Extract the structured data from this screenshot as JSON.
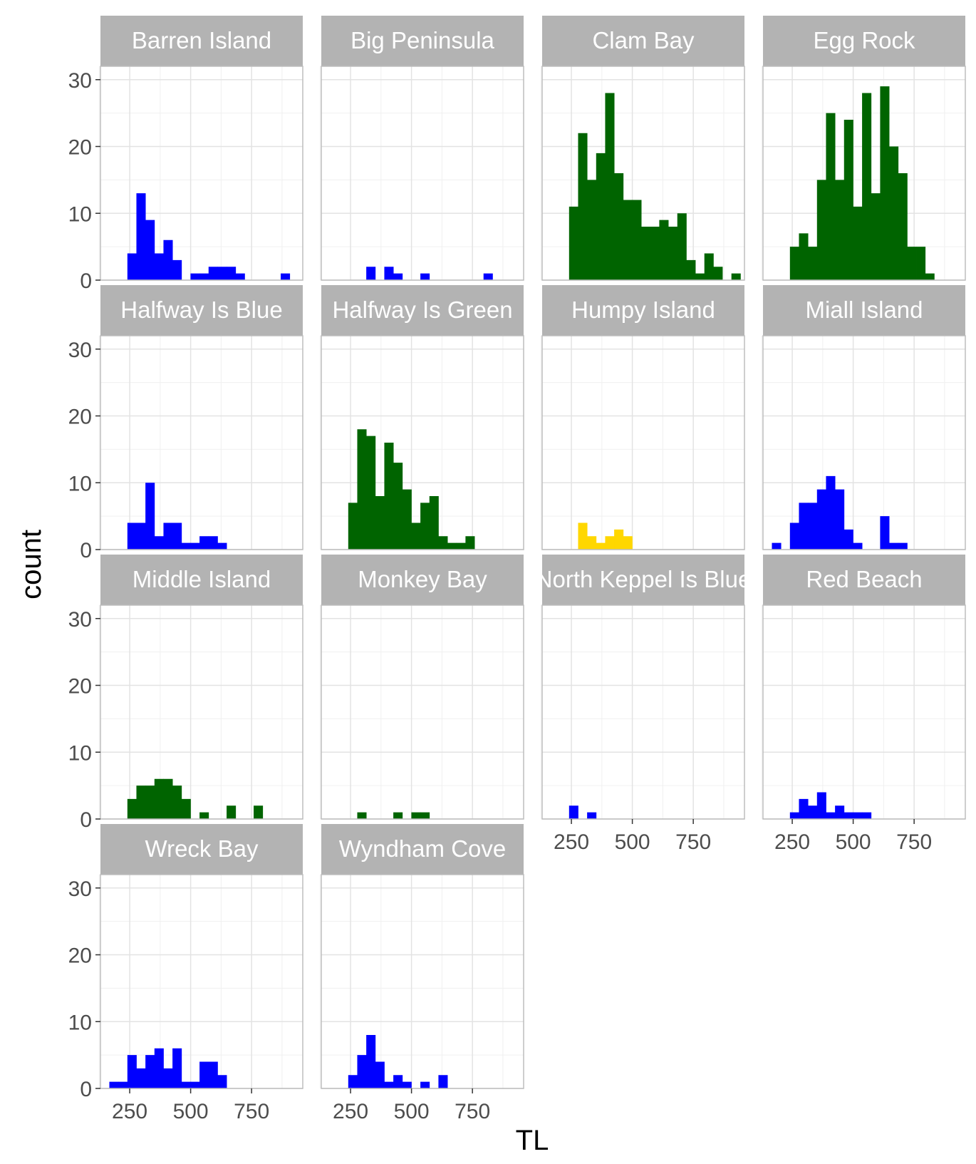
{
  "chart_data": {
    "type": "bar",
    "subtype": "faceted histogram",
    "xlabel": "TL",
    "ylabel": "count",
    "xlim": [
      130,
      960
    ],
    "ylim": [
      0,
      32
    ],
    "x_ticks": [
      250,
      500,
      750
    ],
    "y_ticks": [
      0,
      10,
      20,
      30
    ],
    "bin_width": 37,
    "grid": true,
    "legend": "none",
    "colors": {
      "blue": "#0000ff",
      "green": "#006400",
      "yellow": "#ffd700",
      "strip": "#b3b3b3",
      "grid": "#e3e3e3",
      "border": "#bdbdbd"
    },
    "facets": [
      {
        "name": "Barren Island",
        "label": "Barren Island",
        "color": "blue",
        "bins": [
          [
            259,
            4
          ],
          [
            296,
            13
          ],
          [
            333,
            9
          ],
          [
            370,
            4
          ],
          [
            407,
            6
          ],
          [
            444,
            3
          ],
          [
            518,
            1
          ],
          [
            555,
            1
          ],
          [
            592,
            2
          ],
          [
            629,
            2
          ],
          [
            666,
            2
          ],
          [
            703,
            1
          ],
          [
            888,
            1
          ]
        ]
      },
      {
        "name": "Big Peninsula",
        "label": "Big Peninsula",
        "color": "blue",
        "bins": [
          [
            333,
            2
          ],
          [
            407,
            2
          ],
          [
            444,
            1
          ],
          [
            555,
            1
          ],
          [
            814,
            1
          ]
        ]
      },
      {
        "name": "Clam Bay",
        "label": "Clam Bay",
        "color": "green",
        "bins": [
          [
            259,
            11
          ],
          [
            296,
            22
          ],
          [
            333,
            15
          ],
          [
            370,
            19
          ],
          [
            407,
            28
          ],
          [
            444,
            16
          ],
          [
            481,
            12
          ],
          [
            518,
            12
          ],
          [
            555,
            8
          ],
          [
            592,
            8
          ],
          [
            629,
            9
          ],
          [
            666,
            8
          ],
          [
            703,
            10
          ],
          [
            740,
            3
          ],
          [
            777,
            1
          ],
          [
            814,
            4
          ],
          [
            851,
            2
          ],
          [
            925,
            1
          ]
        ]
      },
      {
        "name": "Egg Rock",
        "label": "Egg Rock",
        "color": "green",
        "bins": [
          [
            259,
            5
          ],
          [
            296,
            7
          ],
          [
            333,
            5
          ],
          [
            370,
            15
          ],
          [
            407,
            25
          ],
          [
            444,
            15
          ],
          [
            481,
            24
          ],
          [
            518,
            11
          ],
          [
            555,
            28
          ],
          [
            592,
            13
          ],
          [
            629,
            29
          ],
          [
            666,
            20
          ],
          [
            703,
            16
          ],
          [
            740,
            5
          ],
          [
            777,
            5
          ],
          [
            814,
            1
          ]
        ]
      },
      {
        "name": "Halfway Is Blue",
        "label": "Halfway Is Blue",
        "color": "blue",
        "bins": [
          [
            259,
            4
          ],
          [
            296,
            4
          ],
          [
            333,
            10
          ],
          [
            370,
            2
          ],
          [
            407,
            4
          ],
          [
            444,
            4
          ],
          [
            481,
            1
          ],
          [
            518,
            1
          ],
          [
            555,
            2
          ],
          [
            592,
            2
          ],
          [
            629,
            1
          ]
        ]
      },
      {
        "name": "Halfway Is Green",
        "label": "Halfway Is Green",
        "color": "green",
        "bins": [
          [
            259,
            7
          ],
          [
            296,
            18
          ],
          [
            333,
            17
          ],
          [
            370,
            8
          ],
          [
            407,
            16
          ],
          [
            444,
            13
          ],
          [
            481,
            9
          ],
          [
            518,
            4
          ],
          [
            555,
            7
          ],
          [
            592,
            8
          ],
          [
            629,
            2
          ],
          [
            666,
            1
          ],
          [
            703,
            1
          ],
          [
            740,
            2
          ]
        ]
      },
      {
        "name": "Humpy Island",
        "label": "Humpy Island",
        "color": "yellow",
        "bins": [
          [
            296,
            4
          ],
          [
            333,
            2
          ],
          [
            370,
            1
          ],
          [
            407,
            2
          ],
          [
            444,
            3
          ],
          [
            481,
            2
          ]
        ]
      },
      {
        "name": "Miall Island",
        "label": "Miall Island",
        "color": "blue",
        "bins": [
          [
            185,
            1
          ],
          [
            259,
            4
          ],
          [
            296,
            7
          ],
          [
            333,
            7
          ],
          [
            370,
            9
          ],
          [
            407,
            11
          ],
          [
            444,
            9
          ],
          [
            481,
            3
          ],
          [
            518,
            1
          ],
          [
            629,
            5
          ],
          [
            666,
            1
          ],
          [
            703,
            1
          ]
        ]
      },
      {
        "name": "Middle Island",
        "label": "Middle Island",
        "color": "green",
        "bins": [
          [
            259,
            3
          ],
          [
            296,
            5
          ],
          [
            333,
            5
          ],
          [
            370,
            6
          ],
          [
            407,
            6
          ],
          [
            444,
            5
          ],
          [
            481,
            3
          ],
          [
            555,
            1
          ],
          [
            666,
            2
          ],
          [
            777,
            2
          ]
        ]
      },
      {
        "name": "Monkey Bay",
        "label": "Monkey Bay",
        "color": "green",
        "bins": [
          [
            296,
            1
          ],
          [
            444,
            1
          ],
          [
            518,
            1
          ],
          [
            555,
            1
          ]
        ]
      },
      {
        "name": "North Keppel Is Blue",
        "label": "North Keppel Is Blue",
        "color": "blue",
        "bins": [
          [
            259,
            2
          ],
          [
            333,
            1
          ]
        ]
      },
      {
        "name": "Red Beach",
        "label": "Red Beach",
        "color": "blue",
        "bins": [
          [
            259,
            1
          ],
          [
            296,
            3
          ],
          [
            333,
            2
          ],
          [
            370,
            4
          ],
          [
            407,
            1
          ],
          [
            444,
            2
          ],
          [
            481,
            1
          ],
          [
            518,
            1
          ],
          [
            555,
            1
          ]
        ]
      },
      {
        "name": "Wreck Bay",
        "label": "Wreck Bay",
        "color": "blue",
        "bins": [
          [
            185,
            1
          ],
          [
            222,
            1
          ],
          [
            259,
            5
          ],
          [
            296,
            3
          ],
          [
            333,
            5
          ],
          [
            370,
            6
          ],
          [
            407,
            3
          ],
          [
            444,
            6
          ],
          [
            481,
            1
          ],
          [
            518,
            1
          ],
          [
            555,
            4
          ],
          [
            592,
            4
          ],
          [
            629,
            2
          ]
        ]
      },
      {
        "name": "Wyndham Cove",
        "label": "Wyndham Cove",
        "color": "blue",
        "bins": [
          [
            259,
            2
          ],
          [
            296,
            5
          ],
          [
            333,
            8
          ],
          [
            370,
            4
          ],
          [
            407,
            1
          ],
          [
            444,
            2
          ],
          [
            481,
            1
          ],
          [
            555,
            1
          ],
          [
            629,
            2
          ]
        ]
      }
    ]
  }
}
